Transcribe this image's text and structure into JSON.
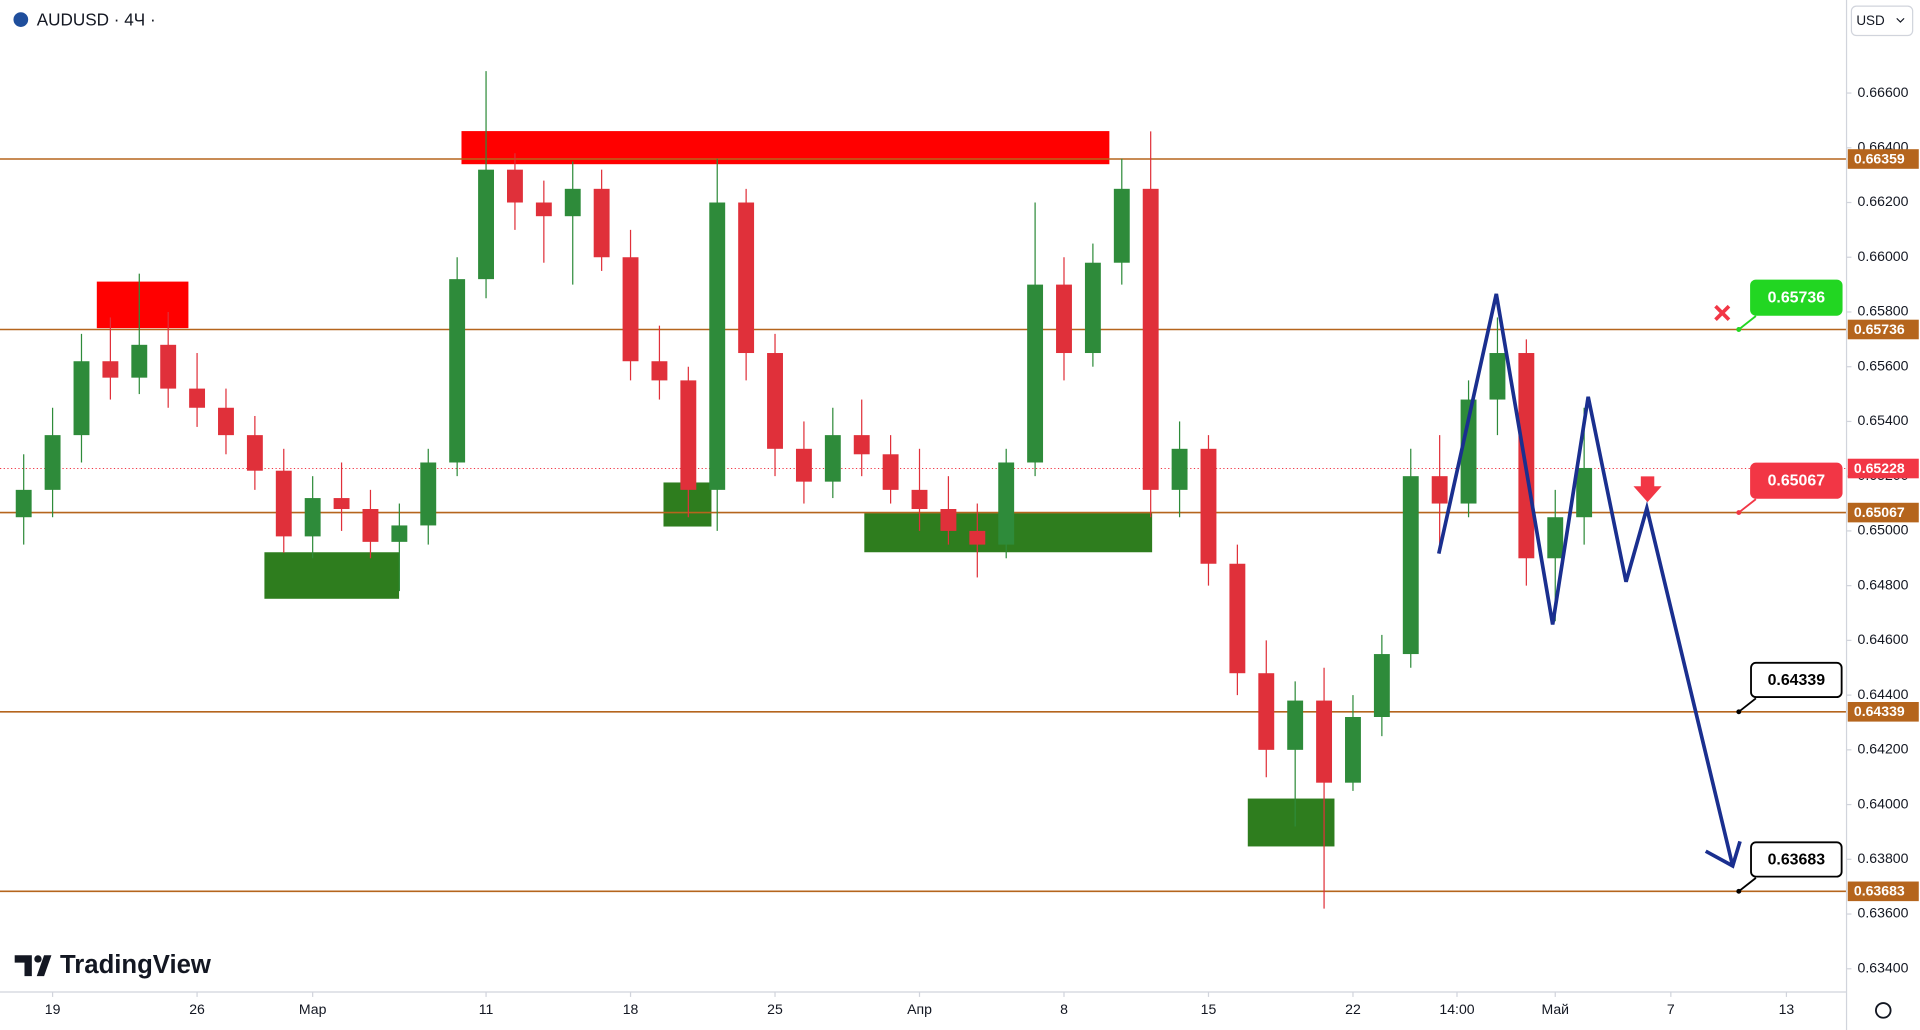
{
  "chart_data": {
    "type": "candlestick",
    "title": "AUDUSD · 4Ч ·",
    "currency": "USD",
    "brand": "TradingView",
    "xlim": [
      -1.82,
      62.08
    ],
    "ylim": [
      0.63315,
      0.6694
    ],
    "grid": false,
    "up_color": "#2e8b3a",
    "down_color": "#e0303a",
    "xticks": [
      {
        "value": 0,
        "label": "19"
      },
      {
        "value": 5,
        "label": "26"
      },
      {
        "value": 9,
        "label": "Мар"
      },
      {
        "value": 15,
        "label": "11"
      },
      {
        "value": 20,
        "label": "18"
      },
      {
        "value": 25,
        "label": "25"
      },
      {
        "value": 30,
        "label": "Апр"
      },
      {
        "value": 35,
        "label": "8"
      },
      {
        "value": 40,
        "label": "15"
      },
      {
        "value": 45,
        "label": "22"
      },
      {
        "value": 48.6,
        "label": "14:00"
      },
      {
        "value": 52,
        "label": "Май"
      },
      {
        "value": 56,
        "label": "7"
      },
      {
        "value": 60,
        "label": "13"
      }
    ],
    "yticks": [
      {
        "value": 0.634,
        "label": "0.63400"
      },
      {
        "value": 0.636,
        "label": "0.63600"
      },
      {
        "value": 0.638,
        "label": "0.63800"
      },
      {
        "value": 0.64,
        "label": "0.64000"
      },
      {
        "value": 0.642,
        "label": "0.64200"
      },
      {
        "value": 0.644,
        "label": "0.64400"
      },
      {
        "value": 0.646,
        "label": "0.64600"
      },
      {
        "value": 0.648,
        "label": "0.64800"
      },
      {
        "value": 0.65,
        "label": "0.65000"
      },
      {
        "value": 0.652,
        "label": "0.65200"
      },
      {
        "value": 0.654,
        "label": "0.65400"
      },
      {
        "value": 0.656,
        "label": "0.65600"
      },
      {
        "value": 0.658,
        "label": "0.65800"
      },
      {
        "value": 0.66,
        "label": "0.66000"
      },
      {
        "value": 0.662,
        "label": "0.66200"
      },
      {
        "value": 0.664,
        "label": "0.66400"
      },
      {
        "value": 0.666,
        "label": "0.66600"
      }
    ],
    "x": [
      -1,
      0,
      1,
      2,
      3,
      4,
      5,
      6,
      7,
      8,
      9,
      10,
      11,
      12,
      13,
      14,
      15,
      16,
      17,
      18,
      19,
      20,
      21,
      22,
      23,
      24,
      25,
      26,
      27,
      28,
      29,
      30,
      31,
      32,
      33,
      34,
      35,
      36,
      37,
      38,
      39,
      40,
      41,
      42,
      43,
      44,
      45,
      46,
      47,
      48,
      49,
      50,
      51,
      52,
      53
    ],
    "open": [
      0.6505,
      0.6515,
      0.6535,
      0.6562,
      0.6556,
      0.6568,
      0.6552,
      0.6545,
      0.6535,
      0.6522,
      0.6498,
      0.6512,
      0.6508,
      0.6496,
      0.6502,
      0.6525,
      0.6592,
      0.6632,
      0.662,
      0.6615,
      0.6625,
      0.66,
      0.6562,
      0.6555,
      0.6515,
      0.662,
      0.6565,
      0.653,
      0.6518,
      0.6535,
      0.6528,
      0.6515,
      0.6508,
      0.65,
      0.6495,
      0.6525,
      0.659,
      0.6565,
      0.6598,
      0.6625,
      0.6515,
      0.653,
      0.6488,
      0.6448,
      0.642,
      0.6438,
      0.6408,
      0.6432,
      0.6455,
      0.652,
      0.651,
      0.6548,
      0.6565,
      0.649,
      0.6505
    ],
    "high": [
      0.6528,
      0.6545,
      0.6572,
      0.6578,
      0.6594,
      0.658,
      0.6565,
      0.6552,
      0.6542,
      0.653,
      0.652,
      0.6525,
      0.6515,
      0.651,
      0.653,
      0.66,
      0.6668,
      0.6638,
      0.6628,
      0.6635,
      0.6632,
      0.661,
      0.6575,
      0.656,
      0.6636,
      0.6625,
      0.6572,
      0.654,
      0.6545,
      0.6548,
      0.6535,
      0.653,
      0.652,
      0.651,
      0.653,
      0.662,
      0.66,
      0.6605,
      0.6636,
      0.6646,
      0.654,
      0.6535,
      0.6495,
      0.646,
      0.6445,
      0.645,
      0.644,
      0.6462,
      0.653,
      0.6535,
      0.6555,
      0.6578,
      0.657,
      0.6515,
      0.6545
    ],
    "low": [
      0.6495,
      0.6505,
      0.6525,
      0.6548,
      0.655,
      0.6545,
      0.6538,
      0.6528,
      0.6515,
      0.6492,
      0.649,
      0.65,
      0.649,
      0.6478,
      0.6495,
      0.652,
      0.6585,
      0.661,
      0.6598,
      0.659,
      0.6595,
      0.6555,
      0.6548,
      0.6505,
      0.65,
      0.6555,
      0.652,
      0.651,
      0.6512,
      0.652,
      0.651,
      0.65,
      0.6495,
      0.6483,
      0.649,
      0.652,
      0.6555,
      0.656,
      0.659,
      0.6505,
      0.6505,
      0.648,
      0.644,
      0.641,
      0.6392,
      0.6362,
      0.6405,
      0.6425,
      0.645,
      0.6495,
      0.6505,
      0.6535,
      0.648,
      0.6467,
      0.6495
    ],
    "close": [
      0.6515,
      0.6535,
      0.6562,
      0.6556,
      0.6568,
      0.6552,
      0.6545,
      0.6535,
      0.6522,
      0.6498,
      0.6512,
      0.6508,
      0.6496,
      0.6502,
      0.6525,
      0.6592,
      0.6632,
      0.662,
      0.6615,
      0.6625,
      0.66,
      0.6562,
      0.6555,
      0.6515,
      0.662,
      0.6565,
      0.653,
      0.6518,
      0.6535,
      0.6528,
      0.6515,
      0.6508,
      0.65,
      0.6495,
      0.6525,
      0.659,
      0.6565,
      0.6598,
      0.6625,
      0.6515,
      0.653,
      0.6488,
      0.6448,
      0.642,
      0.6438,
      0.6408,
      0.6432,
      0.6455,
      0.652,
      0.651,
      0.6548,
      0.6565,
      0.649,
      0.6505,
      0.6523
    ],
    "current_price": 0.65228,
    "current_color": "#f23645",
    "levels": [
      {
        "value": 0.66359,
        "color": "#b5651d"
      },
      {
        "value": 0.65736,
        "color": "#b5651d"
      },
      {
        "value": 0.65067,
        "color": "#b5651d"
      },
      {
        "value": 0.64339,
        "color": "#b5651d"
      },
      {
        "value": 0.63683,
        "color": "#b5651d"
      }
    ],
    "callouts": [
      {
        "value": 0.65736,
        "color": "#22d622",
        "filled": true
      },
      {
        "value": 0.65067,
        "color": "#f23645",
        "filled": true
      },
      {
        "value": 0.64339,
        "color": "#000000",
        "filled": false
      },
      {
        "value": 0.63683,
        "color": "#000000",
        "filled": false
      }
    ],
    "zones": [
      {
        "x": [
          14.15,
          36.57
        ],
        "y": [
          0.6634,
          0.66461
        ],
        "color": "#ff0000"
      },
      {
        "x": [
          1.53,
          4.7
        ],
        "y": [
          0.65741,
          0.65911
        ],
        "color": "#ff0000"
      },
      {
        "x": [
          7.33,
          11.99
        ],
        "y": [
          0.64752,
          0.64922
        ],
        "color": "#2e7d1e"
      },
      {
        "x": [
          21.14,
          22.8
        ],
        "y": [
          0.65016,
          0.65177
        ],
        "color": "#2e7d1e"
      },
      {
        "x": [
          28.09,
          38.05
        ],
        "y": [
          0.64922,
          0.65065
        ],
        "color": "#2e7d1e"
      },
      {
        "x": [
          41.36,
          44.36
        ],
        "y": [
          0.63847,
          0.64022
        ],
        "color": "#2e7d1e"
      }
    ],
    "projection": {
      "color": "#1a2f8f",
      "x": [
        47.97,
        49.96,
        51.91,
        53.14,
        54.45,
        55.17,
        58.14
      ],
      "y": [
        0.64917,
        0.65866,
        0.64658,
        0.6549,
        0.64814,
        0.65083,
        0.63776
      ]
    }
  }
}
